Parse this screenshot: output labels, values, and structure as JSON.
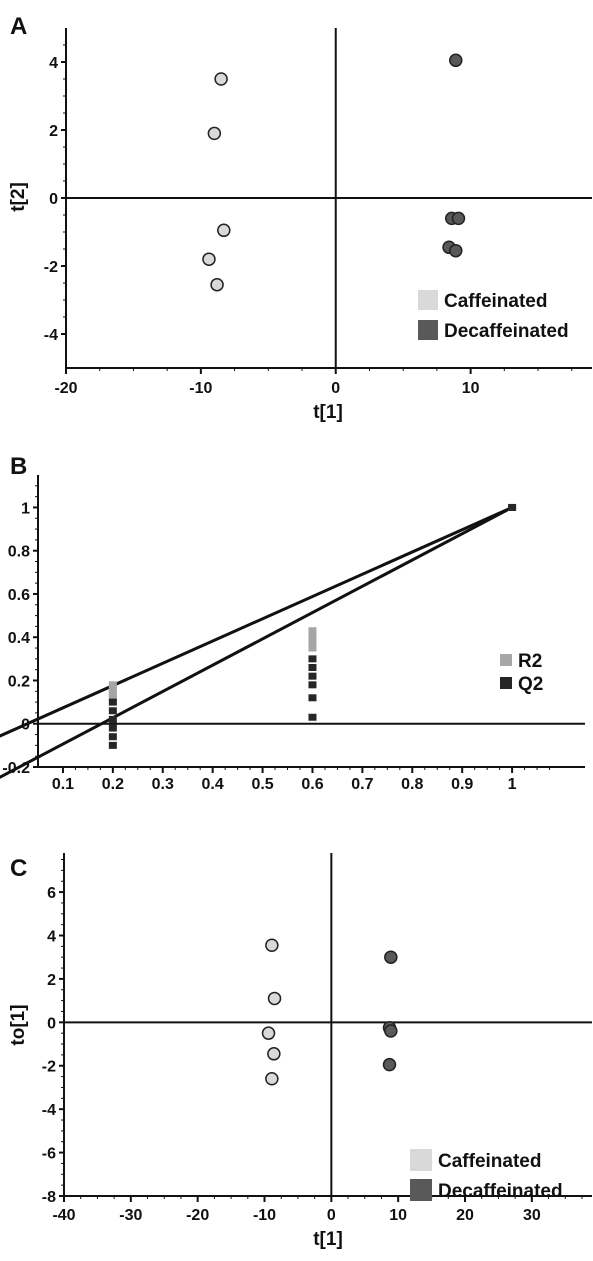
{
  "chart_data": [
    {
      "panel_label": "A",
      "type": "scatter",
      "xlabel": "t[1]",
      "ylabel": "t[2]",
      "xlim": [
        -20,
        19
      ],
      "ylim": [
        -5,
        5
      ],
      "xticks": [
        -20,
        -10,
        0,
        10
      ],
      "yticks": [
        -4,
        -2,
        0,
        2,
        4
      ],
      "legend_position": "bottom-right",
      "series": [
        {
          "name": "Caffeinated",
          "color": "#d9d9d9",
          "points": [
            [
              -8.5,
              3.5
            ],
            [
              -9.0,
              1.9
            ],
            [
              -8.3,
              -0.95
            ],
            [
              -9.4,
              -1.8
            ],
            [
              -8.8,
              -2.55
            ]
          ]
        },
        {
          "name": "Decaffeinated",
          "color": "#595959",
          "points": [
            [
              8.9,
              4.05
            ],
            [
              8.6,
              -0.6
            ],
            [
              9.1,
              -0.6
            ],
            [
              8.4,
              -1.45
            ],
            [
              8.9,
              -1.55
            ]
          ]
        }
      ]
    },
    {
      "panel_label": "B",
      "type": "scatter",
      "xlabel": "",
      "ylabel": "",
      "xlim": [
        0.05,
        1.1
      ],
      "ylim": [
        -0.2,
        1.15
      ],
      "xticks": [
        0.1,
        0.2,
        0.3,
        0.4,
        0.5,
        0.6,
        0.7,
        0.8,
        0.9,
        1
      ],
      "yticks": [
        -0.2,
        0,
        0.2,
        0.4,
        0.6,
        0.8,
        1
      ],
      "legend_position": "right",
      "series": [
        {
          "name": "R2",
          "color": "#a6a6a6",
          "points": [
            [
              0.2,
              0.18
            ],
            [
              0.2,
              0.16
            ],
            [
              0.2,
              0.14
            ],
            [
              0.2,
              0.12
            ],
            [
              0.6,
              0.43
            ],
            [
              0.6,
              0.41
            ],
            [
              0.6,
              0.39
            ],
            [
              0.6,
              0.37
            ],
            [
              0.6,
              0.35
            ],
            [
              1,
              1
            ]
          ]
        },
        {
          "name": "Q2",
          "color": "#262626",
          "points": [
            [
              0.2,
              0.1
            ],
            [
              0.2,
              0.06
            ],
            [
              0.2,
              0.02
            ],
            [
              0.2,
              -0.02
            ],
            [
              0.2,
              -0.06
            ],
            [
              0.2,
              -0.1
            ],
            [
              0.6,
              0.3
            ],
            [
              0.6,
              0.26
            ],
            [
              0.6,
              0.22
            ],
            [
              0.6,
              0.18
            ],
            [
              0.6,
              0.12
            ],
            [
              0.6,
              0.03
            ],
            [
              1,
              1
            ]
          ]
        }
      ],
      "regression_lines": [
        {
          "name": "R2",
          "intercept": -0.0294,
          "slope": 1.0294
        },
        {
          "name": "Q2",
          "intercept": -0.2154,
          "slope": 1.2154
        }
      ]
    },
    {
      "panel_label": "C",
      "type": "scatter",
      "xlabel": "t[1]",
      "ylabel": "to[1]",
      "xlim": [
        -40,
        39
      ],
      "ylim": [
        -8,
        7.8
      ],
      "xticks": [
        -40,
        -30,
        -20,
        -10,
        0,
        10,
        20,
        30
      ],
      "yticks": [
        -8,
        -6,
        -4,
        -2,
        0,
        2,
        4,
        6
      ],
      "legend_position": "bottom-right",
      "series": [
        {
          "name": "Caffeinated",
          "color": "#d9d9d9",
          "points": [
            [
              -8.9,
              3.55
            ],
            [
              -8.5,
              1.1
            ],
            [
              -9.4,
              -0.5
            ],
            [
              -8.6,
              -1.45
            ],
            [
              -8.9,
              -2.6
            ]
          ]
        },
        {
          "name": "Decaffeinated",
          "color": "#595959",
          "points": [
            [
              8.9,
              3.0
            ],
            [
              8.7,
              -0.25
            ],
            [
              8.9,
              -0.4
            ],
            [
              8.7,
              -1.95
            ]
          ]
        }
      ]
    }
  ]
}
